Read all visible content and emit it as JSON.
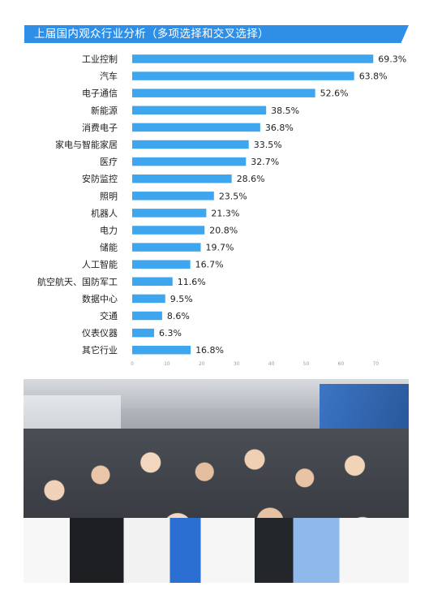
{
  "header": {
    "title": "上届国内观众行业分析（多项选择和交叉选择）"
  },
  "chart_data": {
    "type": "bar",
    "orientation": "horizontal",
    "title": "",
    "xlabel": "",
    "ylabel": "",
    "xlim": [
      0,
      70
    ],
    "grid": false,
    "x_ticks": [
      "0",
      "10",
      "20",
      "30",
      "40",
      "50",
      "60",
      "70"
    ],
    "bar_color": "#3ea6ee",
    "categories": [
      "工业控制",
      "汽车",
      "电子通信",
      "新能源",
      "消费电子",
      "家电与智能家居",
      "医疗",
      "安防监控",
      "照明",
      "机器人",
      "电力",
      "储能",
      "人工智能",
      "航空航天、国防军工",
      "数据中心",
      "交通",
      "仪表仪器",
      "其它行业"
    ],
    "values": [
      69.3,
      63.8,
      52.6,
      38.5,
      36.8,
      33.5,
      32.7,
      28.6,
      23.5,
      21.3,
      20.8,
      19.7,
      16.7,
      11.6,
      9.5,
      8.6,
      6.3,
      16.8
    ],
    "labels": [
      "69.3%",
      "63.8%",
      "52.6%",
      "38.5%",
      "36.8%",
      "33.5%",
      "32.7%",
      "28.6%",
      "23.5%",
      "21.3%",
      "20.8%",
      "19.7%",
      "16.7%",
      "11.6%",
      "9.5%",
      "8.6%",
      "6.3%",
      "16.8%"
    ]
  }
}
